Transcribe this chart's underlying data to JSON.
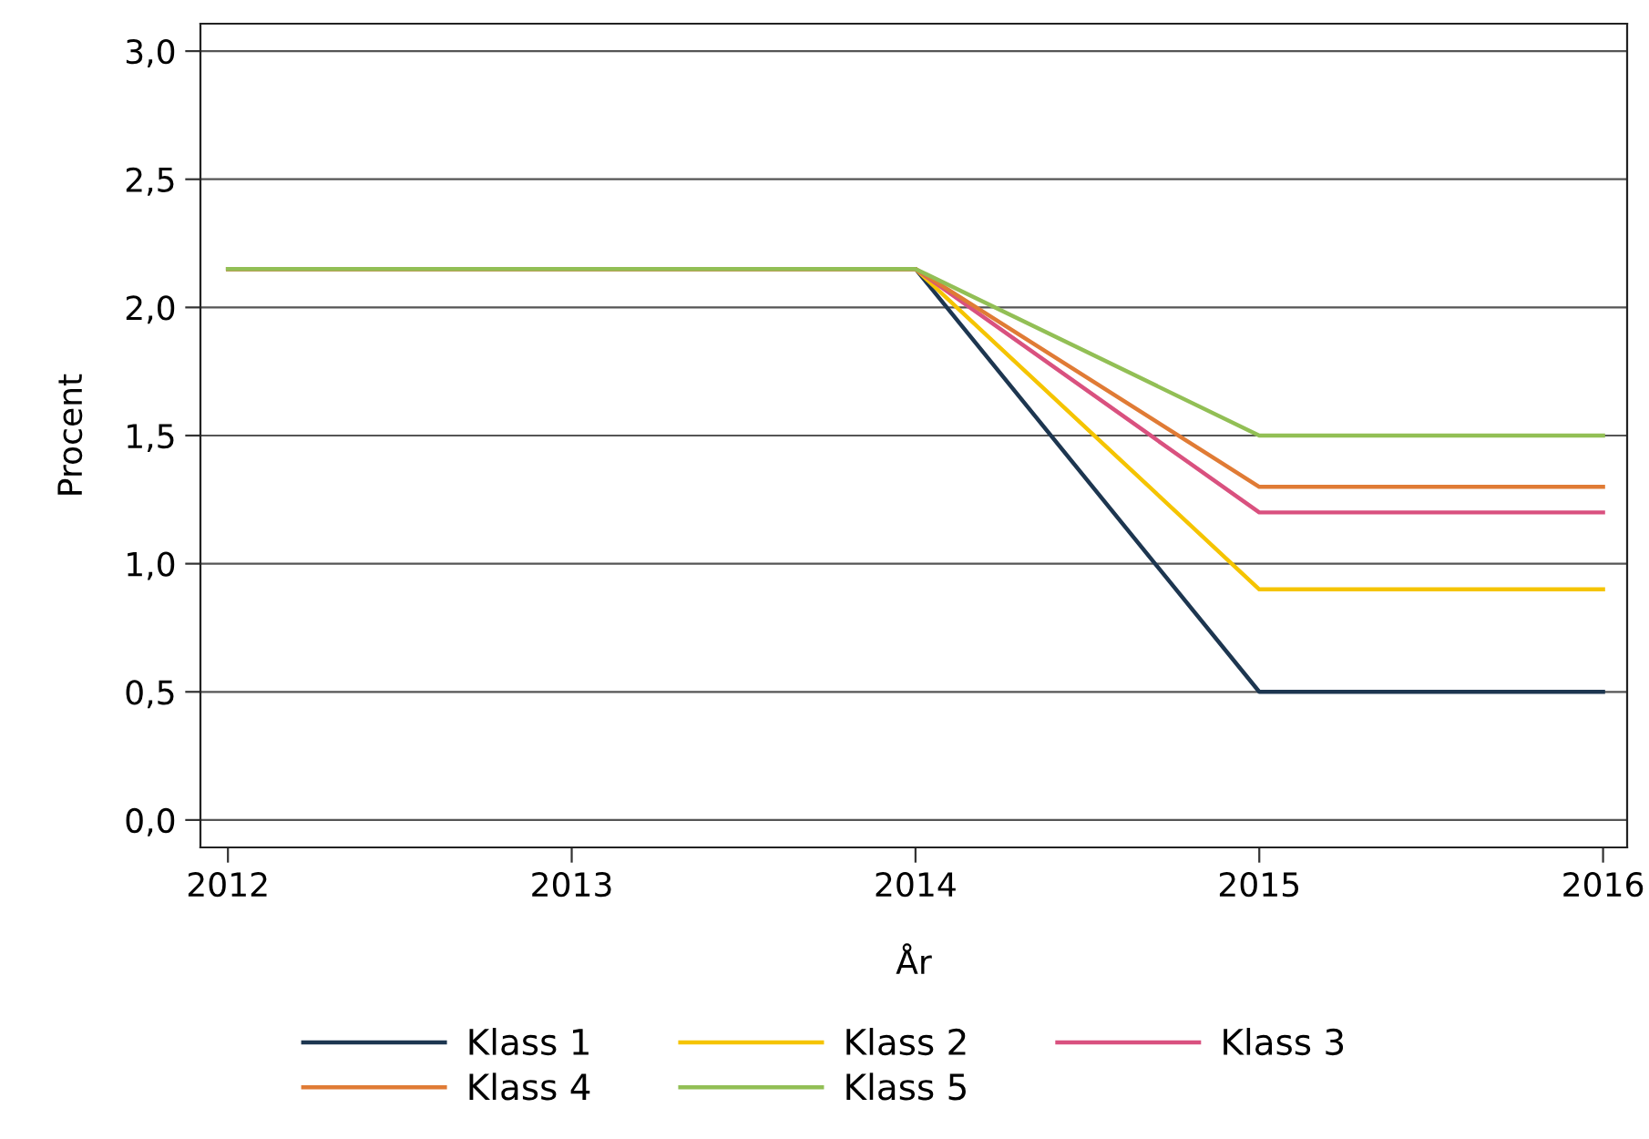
{
  "chart_data": {
    "type": "line",
    "xlabel": "År",
    "ylabel": "Procent",
    "x": [
      2012,
      2013,
      2014,
      2015,
      2016
    ],
    "series": [
      {
        "name": "Klass 1",
        "color": "#1d3650",
        "values": [
          2.15,
          2.15,
          2.15,
          0.5,
          0.5
        ]
      },
      {
        "name": "Klass 2",
        "color": "#f5c400",
        "values": [
          2.15,
          2.15,
          2.15,
          0.9,
          0.9
        ]
      },
      {
        "name": "Klass 3",
        "color": "#d9517f",
        "values": [
          2.15,
          2.15,
          2.15,
          1.2,
          1.2
        ]
      },
      {
        "name": "Klass 4",
        "color": "#e07b35",
        "values": [
          2.15,
          2.15,
          2.15,
          1.3,
          1.3
        ]
      },
      {
        "name": "Klass 5",
        "color": "#92bf55",
        "values": [
          2.15,
          2.15,
          2.15,
          1.5,
          1.5
        ]
      }
    ],
    "xlim": [
      2011.92,
      2016.07
    ],
    "ylim": [
      -0.107,
      3.107
    ],
    "xticks": [
      2012,
      2013,
      2014,
      2015,
      2016
    ],
    "yticks": [
      {
        "value": 0,
        "label": "0,0"
      },
      {
        "value": 0.5,
        "label": "0,5"
      },
      {
        "value": 1,
        "label": "1,0"
      },
      {
        "value": 1.5,
        "label": "1,5"
      },
      {
        "value": 2,
        "label": "2,0"
      },
      {
        "value": 2.5,
        "label": "2,5"
      },
      {
        "value": 3,
        "label": "3,0"
      }
    ],
    "grid": "y",
    "legend": "bottom",
    "marker": "none",
    "line_style": "solid"
  }
}
